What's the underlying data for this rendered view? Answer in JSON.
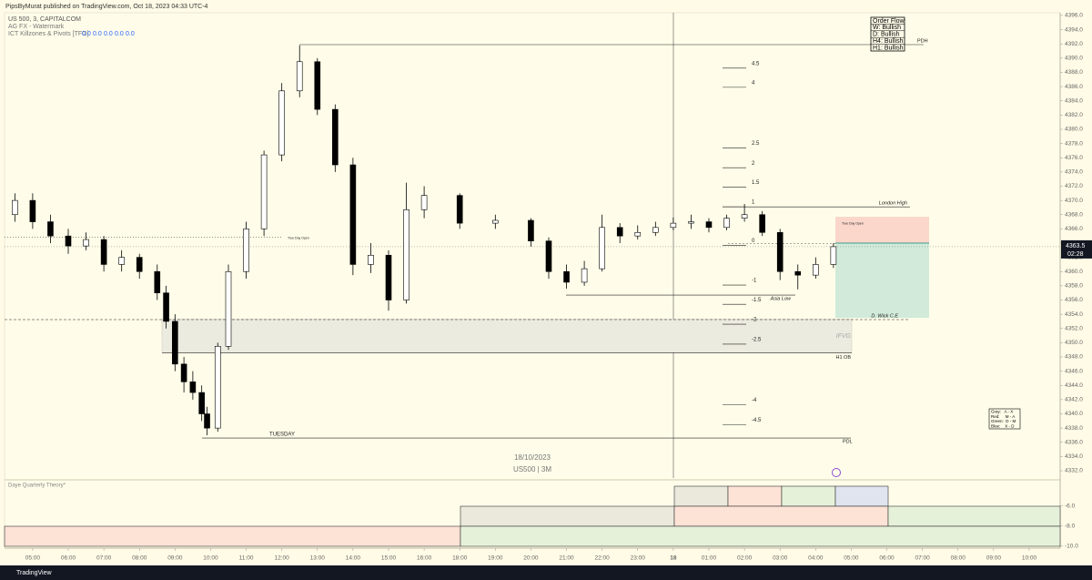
{
  "header": "PipsByMurat published on TradingView.com, Oct 18, 2023 04:33 UTC-4",
  "footer": "TradingView",
  "chart_data": {
    "type": "candlestick",
    "legend_lines": [
      "US 500, 3, CAPITALCOM",
      "AG FX - Watermark"
    ],
    "indicator": {
      "name": "ICT Killzones & Pivots [TFO]",
      "values": [
        "0.0",
        "0.0",
        "0.0",
        "0.0",
        "0.0"
      ]
    },
    "watermark": [
      "18/10/2023",
      "US500 | 3M"
    ],
    "up_color": "#ffffff",
    "down_color": "#000000",
    "x": [
      -0.5,
      0,
      0.5,
      1,
      1.5,
      2,
      2.5,
      3,
      3.5,
      3.75,
      4,
      4.25,
      4.5,
      4.75,
      4.9,
      5.2,
      5.5,
      6,
      6.5,
      7,
      7.5,
      8,
      8.5,
      9,
      9.5,
      10,
      10.5,
      11,
      12,
      13,
      14,
      14.5,
      15,
      15.5,
      16,
      16.5,
      17,
      17.5,
      18,
      18.5,
      19,
      19.5,
      20,
      20.5,
      21,
      21.5,
      22,
      22.5
    ],
    "open": [
      4368,
      4370,
      4367,
      4365,
      4363.6,
      4364.5,
      4361,
      4362,
      4360,
      4357,
      4353,
      4347,
      4344.5,
      4343,
      4340,
      4338,
      4349.5,
      4360,
      4366,
      4376.4,
      4385.4,
      4389.5,
      4382.8,
      4375,
      4361,
      4362.3,
      4356,
      4368.7,
      4370.7,
      4366.8,
      4367.2,
      4364.3,
      4360,
      4358.5,
      4360.4,
      4366.2,
      4365,
      4365.5,
      4366.2,
      4366.8,
      4367,
      4366.2,
      4367.5,
      4368,
      4365.5,
      4360,
      4359.5,
      4361
    ],
    "high": [
      4371,
      4371,
      4368,
      4366,
      4365.5,
      4365,
      4363,
      4362.5,
      4361,
      4358,
      4354,
      4348,
      4346,
      4344,
      4341,
      4350,
      4361,
      4367,
      4377,
      4386.5,
      4391.8,
      4390,
      4383.5,
      4376,
      4364,
      4363,
      4372.5,
      4372,
      4371,
      4368,
      4367.5,
      4364.8,
      4361,
      4361.5,
      4368,
      4366.8,
      4366.5,
      4367,
      4367.6,
      4368,
      4367.5,
      4368,
      4369.5,
      4368.5,
      4366,
      4361,
      4362,
      4364
    ],
    "low": [
      4367,
      4366,
      4364,
      4362.5,
      4363,
      4360,
      4360,
      4359,
      4356,
      4352,
      4346,
      4343,
      4342,
      4339,
      4337,
      4337.5,
      4349,
      4359,
      4365,
      4375.5,
      4384.5,
      4382,
      4374,
      4359.5,
      4359.8,
      4354.5,
      4355.5,
      4367.5,
      4366,
      4366,
      4363.5,
      4359,
      4357.6,
      4358,
      4360,
      4364,
      4364.5,
      4365,
      4365.8,
      4366,
      4365.5,
      4365.8,
      4367,
      4365,
      4358.8,
      4357.5,
      4359,
      4360.5
    ],
    "close": [
      4370,
      4367,
      4365,
      4363.6,
      4364.5,
      4361,
      4362,
      4360,
      4357,
      4353,
      4347,
      4344.5,
      4343,
      4340,
      4338,
      4349.5,
      4360,
      4366,
      4376.4,
      4385.4,
      4389.5,
      4382.8,
      4375,
      4361,
      4362.3,
      4356,
      4368.7,
      4370.7,
      4366.8,
      4367.2,
      4364.3,
      4360,
      4358.5,
      4360.4,
      4366.2,
      4365,
      4365.5,
      4366.2,
      4366.8,
      4367,
      4366.2,
      4367.5,
      4368,
      4365.5,
      4360,
      4359.5,
      4361,
      4363.5
    ],
    "xlim": [
      -0.79,
      28.87
    ],
    "xticks": [
      {
        "value": 0,
        "label": "05:00"
      },
      {
        "value": 1,
        "label": "06:00"
      },
      {
        "value": 2,
        "label": "07:00"
      },
      {
        "value": 3,
        "label": "08:00"
      },
      {
        "value": 4,
        "label": "09:00"
      },
      {
        "value": 5,
        "label": "10:00"
      },
      {
        "value": 6,
        "label": "11:00"
      },
      {
        "value": 7,
        "label": "12:00"
      },
      {
        "value": 8,
        "label": "13:00"
      },
      {
        "value": 9,
        "label": "14:00"
      },
      {
        "value": 10,
        "label": "15:00"
      },
      {
        "value": 11,
        "label": "16:00"
      },
      {
        "value": 12,
        "label": "18:00"
      },
      {
        "value": 13,
        "label": "19:00"
      },
      {
        "value": 14,
        "label": "20:00"
      },
      {
        "value": 15,
        "label": "21:00"
      },
      {
        "value": 16,
        "label": "22:00"
      },
      {
        "value": 17,
        "label": "23:00"
      },
      {
        "value": 18,
        "label": "18"
      },
      {
        "value": 19,
        "label": "01:00"
      },
      {
        "value": 20,
        "label": "02:00"
      },
      {
        "value": 21,
        "label": "03:00"
      },
      {
        "value": 22,
        "label": "04:00"
      },
      {
        "value": 23,
        "label": "05:00"
      },
      {
        "value": 24,
        "label": "06:00"
      },
      {
        "value": 25,
        "label": "07:00"
      },
      {
        "value": 26,
        "label": "08:00"
      },
      {
        "value": 27,
        "label": "09:00"
      },
      {
        "value": 28,
        "label": "10:00"
      }
    ],
    "ylim": [
      4330.98,
      4396.38
    ],
    "yticks": [
      {
        "value": 4396,
        "label": "4396.0"
      },
      {
        "value": 4394,
        "label": "4394.0"
      },
      {
        "value": 4392,
        "label": "4392.0"
      },
      {
        "value": 4390,
        "label": "4390.0"
      },
      {
        "value": 4388,
        "label": "4388.0"
      },
      {
        "value": 4386,
        "label": "4386.0"
      },
      {
        "value": 4384,
        "label": "4384.0"
      },
      {
        "value": 4382,
        "label": "4382.0"
      },
      {
        "value": 4380,
        "label": "4380.0"
      },
      {
        "value": 4378,
        "label": "4378.0"
      },
      {
        "value": 4376,
        "label": "4376.0"
      },
      {
        "value": 4374,
        "label": "4374.0"
      },
      {
        "value": 4372,
        "label": "4372.0"
      },
      {
        "value": 4370,
        "label": "4370.0"
      },
      {
        "value": 4368,
        "label": "4368.0"
      },
      {
        "value": 4366,
        "label": "4366.0"
      },
      {
        "value": 4364,
        "label": "4364.0"
      },
      {
        "value": 4362,
        "label": "4362.0"
      },
      {
        "value": 4360,
        "label": "4360.0"
      },
      {
        "value": 4358,
        "label": "4358.0"
      },
      {
        "value": 4356,
        "label": "4356.0"
      },
      {
        "value": 4354,
        "label": "4354.0"
      },
      {
        "value": 4352,
        "label": "4352.0"
      },
      {
        "value": 4350,
        "label": "4350.0"
      },
      {
        "value": 4348,
        "label": "4348.0"
      },
      {
        "value": 4346,
        "label": "4346.0"
      },
      {
        "value": 4344,
        "label": "4344.0"
      },
      {
        "value": 4342,
        "label": "4342.0"
      },
      {
        "value": 4340,
        "label": "4340.0"
      },
      {
        "value": 4338,
        "label": "4338.0"
      },
      {
        "value": 4336,
        "label": "4336.0"
      },
      {
        "value": 4334,
        "label": "4334.0"
      },
      {
        "value": 4332,
        "label": "4332.0"
      }
    ],
    "last_price": 4363.5,
    "countdown": "02:28",
    "levels": [
      {
        "label": "4.5",
        "price": 4388.6
      },
      {
        "label": "4",
        "price": 4385.9
      },
      {
        "label": "2.5",
        "price": 4377.4
      },
      {
        "label": "2",
        "price": 4374.6
      },
      {
        "label": "1.5",
        "price": 4371.9
      },
      {
        "label": "1",
        "price": 4369.1
      },
      {
        "label": "0",
        "price": 4363.7
      },
      {
        "label": "-1",
        "price": 4358.1
      },
      {
        "label": "-1.5",
        "price": 4355.4
      },
      {
        "label": "-2",
        "price": 4352.6
      },
      {
        "label": "-2.5",
        "price": 4349.8
      },
      {
        "label": "-4",
        "price": 4341.3
      },
      {
        "label": "-4.5",
        "price": 4338.5
      }
    ],
    "annotations": [
      {
        "label": "PDH",
        "price": 4391.9
      },
      {
        "label": "PDL",
        "price": 4336.6
      },
      {
        "label": "London High",
        "price": 4369.1
      },
      {
        "label": "Asia Low",
        "price": 4356.7
      },
      {
        "label": "True Day Open",
        "price": 4364.8
      },
      {
        "label": "True Day Open",
        "price": 4366.6
      },
      {
        "label": "D. Wick C.E",
        "price": 4353.25
      },
      {
        "label": "H1 OB",
        "price": 4348.6
      }
    ],
    "day_label": "TUESDAY",
    "fvg": {
      "label": "IFVG",
      "top": 4353.3,
      "bottom": 4348.6
    },
    "position": {
      "stop": 4367.7,
      "entry": 4364.0,
      "target": 4353.5
    },
    "order_flow": [
      "Order Flow",
      "W: Bullish",
      "D: Bullish",
      "H4: Bullish",
      "H1: Bullish"
    ],
    "legend_box": [
      "Gray:   A - X",
      "Red:     M - A",
      "Green:  D - M",
      "Blue:    X - D"
    ],
    "lower_pane": {
      "title": "Daye Quarterly Theory*",
      "ylim": [
        -10.2,
        -3.5
      ],
      "yticks": [
        {
          "value": -6,
          "label": "-6.0"
        },
        {
          "value": -8,
          "label": "-8.0"
        },
        {
          "value": -10,
          "label": "-10.0"
        }
      ]
    }
  }
}
